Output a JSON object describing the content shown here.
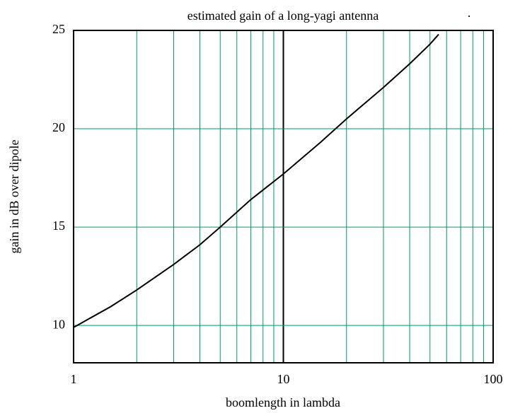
{
  "chart_data": {
    "type": "line",
    "title": "estimated gain of a long-yagi antenna",
    "annotation": ".",
    "x_label": "boomlength in lambda",
    "y_label": "gain in dB over dipole",
    "x": [
      1,
      1.5,
      2,
      3,
      4,
      5,
      7,
      10,
      15,
      20,
      30,
      40,
      50,
      55
    ],
    "series": [
      {
        "name": "gain",
        "color": "#000000",
        "values": [
          9.9,
          10.95,
          11.8,
          13.1,
          14.1,
          15.0,
          16.4,
          17.7,
          19.3,
          20.5,
          22.1,
          23.3,
          24.3,
          24.8
        ]
      }
    ],
    "xlog": true,
    "xlim": [
      1,
      100
    ],
    "xticks": [
      1,
      10,
      100
    ],
    "xminor": [
      2,
      3,
      4,
      5,
      6,
      7,
      8,
      9,
      20,
      30,
      40,
      50,
      60,
      70,
      80,
      90
    ],
    "ylim": [
      8.1,
      25
    ],
    "yticks": [
      10,
      15,
      20,
      25
    ],
    "grid": true,
    "grid_color": "#009966"
  }
}
